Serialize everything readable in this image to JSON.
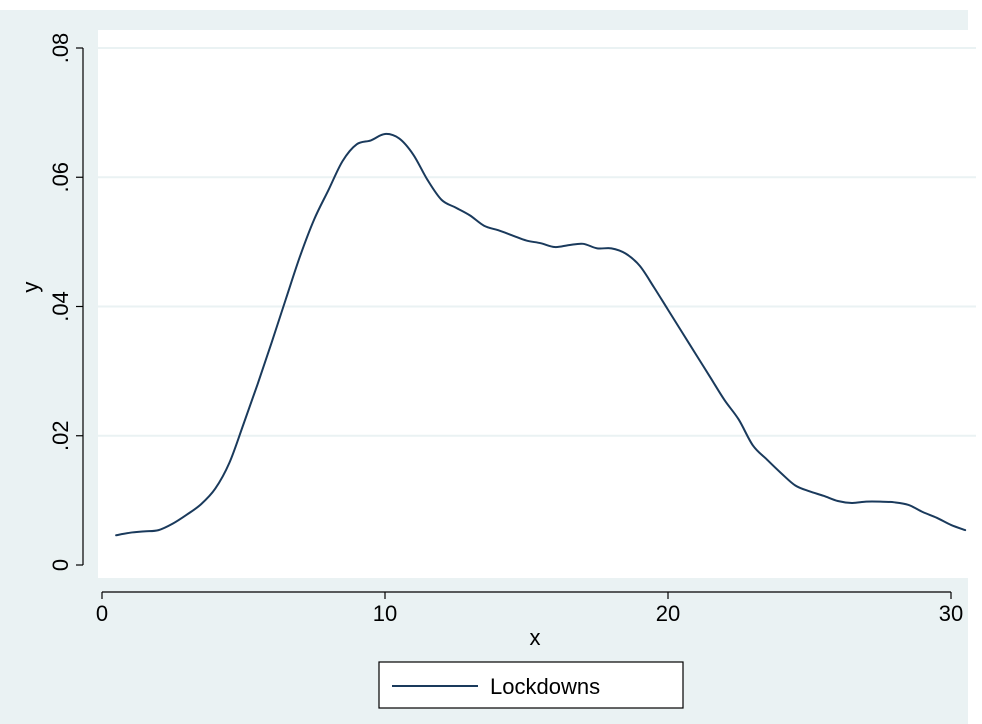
{
  "chart_data": {
    "type": "line",
    "title": "",
    "xlabel": "x",
    "ylabel": "y",
    "xlim": [
      0,
      31
    ],
    "ylim": [
      0,
      0.08
    ],
    "x_ticks": [
      0,
      10,
      20,
      30
    ],
    "x_tick_labels": [
      "0",
      "10",
      "20",
      "30"
    ],
    "y_ticks": [
      0,
      0.02,
      0.04,
      0.06,
      0.08
    ],
    "y_tick_labels": [
      "0",
      ".02",
      ".04",
      ".06",
      ".08"
    ],
    "grid": "horizontal",
    "legend_position": "bottom",
    "series": [
      {
        "name": "Lockdowns",
        "color": "#1a3a5c",
        "x": [
          0.5,
          1,
          1.5,
          2,
          2.5,
          3,
          3.5,
          4,
          4.5,
          5,
          5.5,
          6,
          6.5,
          7,
          7.5,
          8,
          8.5,
          9,
          9.5,
          10,
          10.5,
          11,
          11.5,
          12,
          12.5,
          13,
          13.5,
          14,
          14.5,
          15,
          15.5,
          16,
          16.5,
          17,
          17.5,
          18,
          18.5,
          19,
          19.5,
          20,
          20.5,
          21,
          21.5,
          22,
          22.5,
          23,
          23.5,
          24,
          24.5,
          25,
          25.5,
          26,
          26.5,
          27,
          27.5,
          28,
          28.5,
          29,
          29.5,
          30,
          30.5
        ],
        "y": [
          0.0046,
          0.005,
          0.0052,
          0.0054,
          0.0064,
          0.0078,
          0.0094,
          0.0118,
          0.0158,
          0.0218,
          0.028,
          0.0345,
          0.0412,
          0.0478,
          0.0535,
          0.058,
          0.0625,
          0.0651,
          0.0657,
          0.0667,
          0.066,
          0.0635,
          0.0596,
          0.0565,
          0.0553,
          0.0541,
          0.0525,
          0.0518,
          0.051,
          0.0502,
          0.0498,
          0.0492,
          0.0495,
          0.0497,
          0.049,
          0.049,
          0.0482,
          0.0463,
          0.043,
          0.0395,
          0.036,
          0.0325,
          0.029,
          0.0255,
          0.0225,
          0.0185,
          0.0163,
          0.0142,
          0.0123,
          0.0114,
          0.0107,
          0.0099,
          0.0096,
          0.0098,
          0.0098,
          0.0097,
          0.0093,
          0.0082,
          0.0073,
          0.0062,
          0.0054
        ]
      }
    ]
  }
}
